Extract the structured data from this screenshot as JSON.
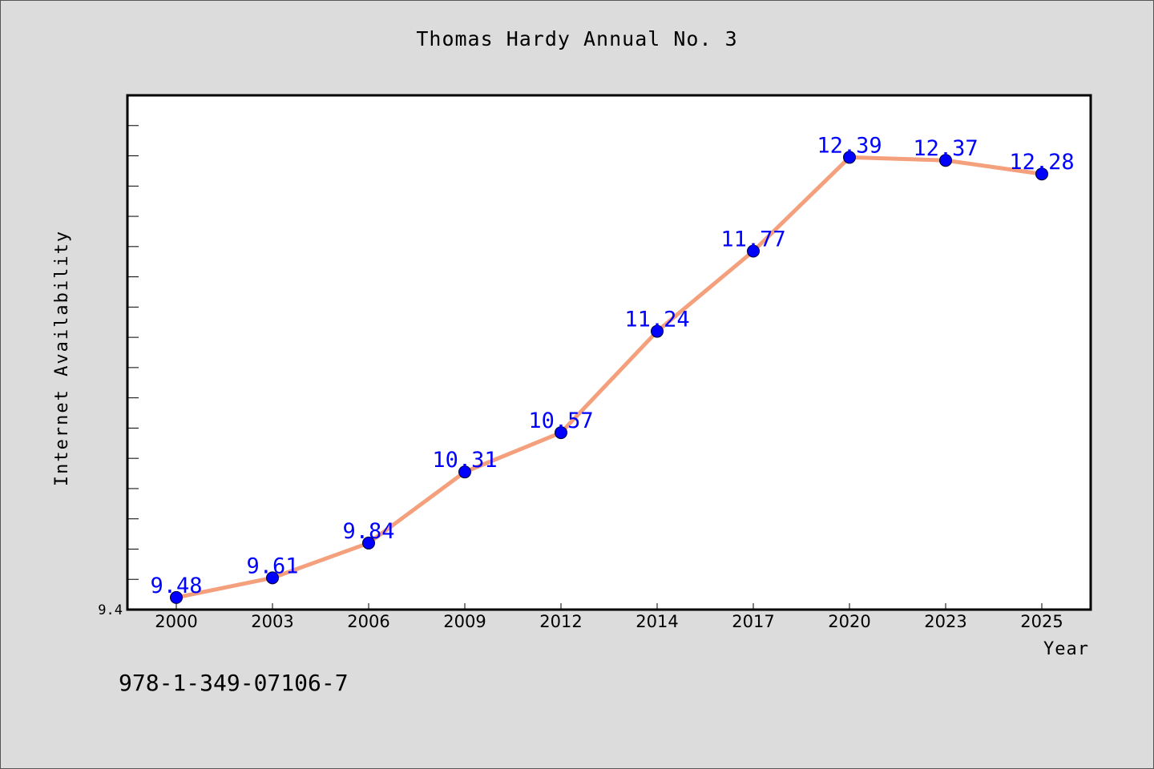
{
  "title": "Thomas Hardy Annual No. 3",
  "isbn": "978-1-349-07106-7",
  "chart_data": {
    "type": "line",
    "title": "Thomas Hardy Annual No. 3",
    "xlabel": "Year",
    "ylabel": "Internet Availability",
    "categories": [
      "2000",
      "2003",
      "2006",
      "2009",
      "2012",
      "2014",
      "2017",
      "2020",
      "2023",
      "2025"
    ],
    "series": [
      {
        "values": [
          9.48,
          9.61,
          9.84,
          10.31,
          10.57,
          11.24,
          11.77,
          12.39,
          12.37,
          12.28
        ],
        "labels": [
          "9.48",
          "9.61",
          "9.84",
          "10.31",
          "10.57",
          "11.24",
          "11.77",
          "12.39",
          "12.37",
          "12.28"
        ]
      }
    ],
    "ylim": [
      9.4,
      12.8
    ],
    "ytick_labels": [
      "9.4"
    ],
    "grid": false,
    "colors": {
      "line": "#f4a07c",
      "marker": "#0000ff",
      "label": "#0000ff"
    }
  }
}
